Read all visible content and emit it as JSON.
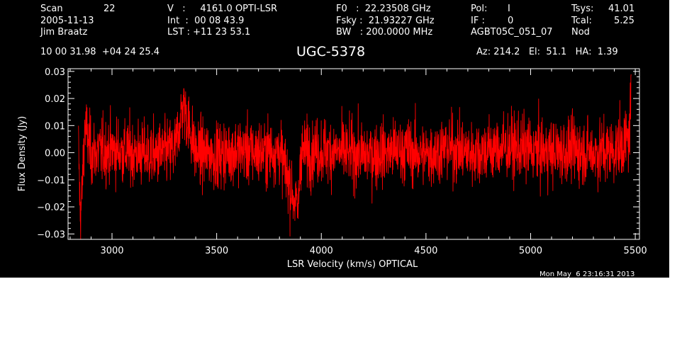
{
  "header": {
    "scan_label": "Scan",
    "scan_value": "22",
    "date": "2005-11-13",
    "observer": "Jim Braatz",
    "coords": "10 00 31.98  +04 24 25.4",
    "v_line": "V   :     4161.0 OPTI-LSR",
    "int_line": "Int  :  00 08 43.9",
    "lst_line": "LST : +11 23 53.1",
    "f0_line": "F0   :  22.23508 GHz",
    "fsky_line": "Fsky :  21.93227 GHz",
    "bw_line": "BW   : 200.0000 MHz",
    "pol_label": "Pol:",
    "pol_value": "I",
    "if_label": "IF :",
    "if_value": "0",
    "project": "AGBT05C_051_07",
    "tsys_label": "Tsys:",
    "tsys_value": "41.01",
    "tcal_label": "Tcal:",
    "tcal_value": "5.25",
    "mode": "Nod",
    "azelha": "Az: 214.2   El:  51.1   HA:  1.39"
  },
  "timestamp": "Mon May  6 23:16:31 2013",
  "chart_data": {
    "type": "line",
    "title": "UGC-5378",
    "xlabel": "LSR Velocity (km/s) OPTICAL",
    "ylabel": "Flux Density (Jy)",
    "xlim": [
      2790,
      5520
    ],
    "ylim": [
      -0.032,
      0.031
    ],
    "xticks": [
      3000,
      3500,
      4000,
      4500,
      5000,
      5500
    ],
    "yticks": [
      -0.03,
      -0.02,
      -0.01,
      0.0,
      0.01,
      0.02,
      0.03
    ],
    "ytick_labels": [
      "−0.03",
      "−0.02",
      "−0.01",
      "0.00",
      "0.01",
      "0.02",
      "0.03"
    ],
    "grid": false,
    "series": [
      {
        "color": "#ff0000",
        "x_range": [
          2840,
          5480
        ],
        "noise_rms_jy": 0.006,
        "baseline_jy": 0.0,
        "x": [
          2840,
          2848,
          2855,
          2870,
          2900,
          3000,
          3100,
          3200,
          3300,
          3340,
          3400,
          3500,
          3600,
          3700,
          3800,
          3890,
          3900,
          4000,
          4100,
          4200,
          4300,
          4400,
          4500,
          4600,
          4700,
          4800,
          4900,
          5000,
          5100,
          5200,
          5300,
          5400,
          5440,
          5470,
          5480
        ],
        "y": [
          0.002,
          -0.023,
          -0.018,
          0.01,
          0.0,
          0.001,
          0.0,
          -0.001,
          0.001,
          0.018,
          0.0,
          -0.001,
          0.001,
          0.0,
          0.001,
          -0.022,
          0.0,
          0.001,
          0.0,
          -0.001,
          0.0,
          0.001,
          -0.001,
          0.002,
          0.0,
          0.001,
          0.002,
          0.001,
          0.0,
          0.001,
          0.0,
          0.001,
          0.003,
          0.005,
          0.021
        ]
      }
    ]
  }
}
